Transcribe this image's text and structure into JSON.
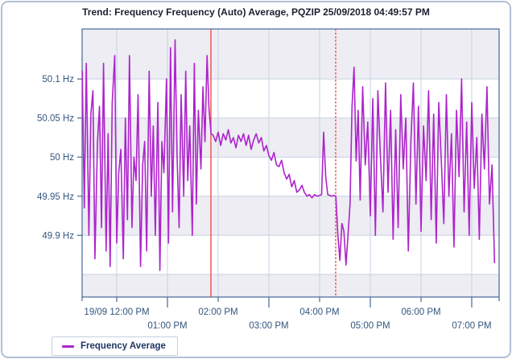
{
  "chart_data": {
    "type": "line",
    "title": "Trend: Frequency Frequency (Auto) Average, PQZIP 25/09/2018 04:49:57 PM",
    "unit": "Hz",
    "xlim_hours": [
      11.317,
      19.54
    ],
    "ylim": [
      49.821,
      50.164
    ],
    "grid": true,
    "legend_position": "bottom-left",
    "colors": {
      "band_gray": "#ededf3",
      "band_white": "#ffffff",
      "gridline": "#c6d2e1",
      "frame": "#46689a",
      "tick_label": "#33567e",
      "marker_red": "#f14b46"
    },
    "y_bands": [
      {
        "from": 50.164,
        "to": 50.1,
        "shade": "gray"
      },
      {
        "from": 50.1,
        "to": 50.05,
        "shade": "white"
      },
      {
        "from": 50.05,
        "to": 50.0,
        "shade": "gray"
      },
      {
        "from": 50.0,
        "to": 49.95,
        "shade": "white"
      },
      {
        "from": 49.95,
        "to": 49.9,
        "shade": "gray"
      },
      {
        "from": 49.9,
        "to": 49.85,
        "shade": "white"
      },
      {
        "from": 49.85,
        "to": 49.821,
        "shade": "gray"
      }
    ],
    "y_gridline_values": [
      50.1,
      50.05,
      50.0,
      49.95,
      49.9,
      49.85
    ],
    "y_ticks": [
      {
        "v": 50.1,
        "label": "50.1 Hz"
      },
      {
        "v": 50.05,
        "label": "50.05 Hz"
      },
      {
        "v": 50.0,
        "label": "50 Hz"
      },
      {
        "v": 49.95,
        "label": "49.95 Hz"
      },
      {
        "v": 49.9,
        "label": "49.9 Hz"
      }
    ],
    "x_gridline_hours": [
      12,
      13,
      14,
      15,
      16,
      17,
      18,
      19
    ],
    "x_tick_hours_short": [
      12,
      14,
      16,
      18
    ],
    "x_tick_hours_long": [
      13,
      15,
      17,
      19
    ],
    "x_labels_row1": [
      {
        "h": 12,
        "label": "19/09 12:00 PM"
      },
      {
        "h": 14,
        "label": "02:00 PM"
      },
      {
        "h": 16,
        "label": "04:00 PM"
      },
      {
        "h": 18,
        "label": "06:00 PM"
      }
    ],
    "x_labels_row2": [
      {
        "h": 13,
        "label": "01:00 PM"
      },
      {
        "h": 15,
        "label": "03:00 PM"
      },
      {
        "h": 17,
        "label": "05:00 PM"
      },
      {
        "h": 19,
        "label": "07:00 PM"
      }
    ],
    "markers": [
      {
        "x_hour": 13.857,
        "style": "solid",
        "color": "#f14b46"
      },
      {
        "x_hour": 16.317,
        "style": "dashed",
        "color": "#f14b46"
      }
    ],
    "series": [
      {
        "name": "Frequency Average",
        "color": "#ad23cb",
        "points": [
          [
            11.32,
            50.11
          ],
          [
            11.36,
            49.935
          ],
          [
            11.4,
            50.12
          ],
          [
            11.45,
            49.9
          ],
          [
            11.49,
            50.055
          ],
          [
            11.53,
            50.085
          ],
          [
            11.57,
            49.87
          ],
          [
            11.62,
            50.02
          ],
          [
            11.66,
            50.065
          ],
          [
            11.7,
            49.91
          ],
          [
            11.74,
            50.12
          ],
          [
            11.79,
            49.88
          ],
          [
            11.83,
            50.03
          ],
          [
            11.87,
            49.86
          ],
          [
            11.91,
            50.07
          ],
          [
            11.96,
            50.13
          ],
          [
            12.0,
            49.89
          ],
          [
            12.04,
            49.98
          ],
          [
            12.08,
            50.01
          ],
          [
            12.13,
            49.87
          ],
          [
            12.17,
            50.05
          ],
          [
            12.21,
            49.92
          ],
          [
            12.25,
            50.13
          ],
          [
            12.3,
            49.91
          ],
          [
            12.34,
            50.0
          ],
          [
            12.38,
            49.97
          ],
          [
            12.42,
            50.08
          ],
          [
            12.47,
            49.86
          ],
          [
            12.51,
            49.99
          ],
          [
            12.55,
            50.02
          ],
          [
            12.59,
            49.88
          ],
          [
            12.64,
            50.11
          ],
          [
            12.68,
            49.95
          ],
          [
            12.72,
            50.04
          ],
          [
            12.76,
            49.9
          ],
          [
            12.81,
            50.07
          ],
          [
            12.85,
            49.855
          ],
          [
            12.89,
            50.02
          ],
          [
            12.93,
            49.98
          ],
          [
            12.98,
            50.1
          ],
          [
            13.02,
            49.89
          ],
          [
            13.06,
            50.14
          ],
          [
            13.1,
            49.93
          ],
          [
            13.15,
            50.15
          ],
          [
            13.19,
            50.0
          ],
          [
            13.23,
            49.91
          ],
          [
            13.27,
            50.08
          ],
          [
            13.32,
            49.95
          ],
          [
            13.36,
            50.11
          ],
          [
            13.4,
            49.97
          ],
          [
            13.44,
            50.04
          ],
          [
            13.49,
            49.9
          ],
          [
            13.53,
            50.12
          ],
          [
            13.57,
            49.94
          ],
          [
            13.61,
            50.06
          ],
          [
            13.66,
            49.985
          ],
          [
            13.7,
            50.09
          ],
          [
            13.74,
            50.02
          ],
          [
            13.78,
            50.13
          ],
          [
            13.82,
            50.06
          ],
          [
            13.86,
            50.03
          ],
          [
            13.9,
            50.028
          ],
          [
            13.95,
            50.02
          ],
          [
            14.0,
            50.032
          ],
          [
            14.05,
            50.015
          ],
          [
            14.1,
            50.03
          ],
          [
            14.15,
            50.022
          ],
          [
            14.2,
            50.035
          ],
          [
            14.25,
            50.018
          ],
          [
            14.3,
            50.025
          ],
          [
            14.35,
            50.012
          ],
          [
            14.4,
            50.028
          ],
          [
            14.45,
            50.02
          ],
          [
            14.5,
            50.03
          ],
          [
            14.55,
            50.015
          ],
          [
            14.6,
            50.028
          ],
          [
            14.65,
            50.01
          ],
          [
            14.7,
            50.022
          ],
          [
            14.75,
            50.03
          ],
          [
            14.8,
            50.018
          ],
          [
            14.85,
            50.025
          ],
          [
            14.9,
            50.008
          ],
          [
            14.95,
            50.015
          ],
          [
            15.0,
            50.002
          ],
          [
            15.05,
            49.996
          ],
          [
            15.1,
            50.006
          ],
          [
            15.15,
            49.99
          ],
          [
            15.2,
            49.988
          ],
          [
            15.25,
            49.996
          ],
          [
            15.3,
            49.98
          ],
          [
            15.35,
            49.972
          ],
          [
            15.4,
            49.978
          ],
          [
            15.45,
            49.962
          ],
          [
            15.5,
            49.97
          ],
          [
            15.55,
            49.955
          ],
          [
            15.6,
            49.958
          ],
          [
            15.65,
            49.964
          ],
          [
            15.7,
            49.955
          ],
          [
            15.75,
            49.95
          ],
          [
            15.8,
            49.952
          ],
          [
            15.85,
            49.948
          ],
          [
            15.9,
            49.952
          ],
          [
            15.95,
            49.95
          ],
          [
            16.0,
            49.951
          ],
          [
            16.04,
            49.952
          ],
          [
            16.08,
            50.032
          ],
          [
            16.12,
            49.975
          ],
          [
            16.16,
            49.952
          ],
          [
            16.2,
            49.951
          ],
          [
            16.24,
            49.95
          ],
          [
            16.28,
            49.951
          ],
          [
            16.32,
            49.95
          ],
          [
            16.36,
            49.9
          ],
          [
            16.4,
            49.868
          ],
          [
            16.44,
            49.915
          ],
          [
            16.48,
            49.905
          ],
          [
            16.52,
            49.862
          ],
          [
            16.56,
            49.9
          ],
          [
            16.6,
            49.94
          ],
          [
            16.64,
            50.065
          ],
          [
            16.68,
            50.115
          ],
          [
            16.72,
            49.995
          ],
          [
            16.76,
            50.06
          ],
          [
            16.8,
            49.945
          ],
          [
            16.85,
            50.09
          ],
          [
            16.9,
            49.99
          ],
          [
            16.95,
            50.045
          ],
          [
            17.0,
            49.925
          ],
          [
            17.05,
            50.075
          ],
          [
            17.1,
            49.9
          ],
          [
            17.15,
            50.085
          ],
          [
            17.2,
            50.0
          ],
          [
            17.25,
            49.93
          ],
          [
            17.3,
            50.095
          ],
          [
            17.35,
            49.955
          ],
          [
            17.4,
            50.06
          ],
          [
            17.45,
            49.895
          ],
          [
            17.5,
            50.035
          ],
          [
            17.55,
            49.91
          ],
          [
            17.6,
            50.08
          ],
          [
            17.65,
            49.985
          ],
          [
            17.7,
            50.05
          ],
          [
            17.75,
            49.88
          ],
          [
            17.8,
            50.02
          ],
          [
            17.85,
            50.095
          ],
          [
            17.9,
            49.94
          ],
          [
            17.95,
            50.065
          ],
          [
            18.0,
            49.905
          ],
          [
            18.05,
            50.04
          ],
          [
            18.1,
            49.97
          ],
          [
            18.15,
            50.085
          ],
          [
            18.2,
            49.92
          ],
          [
            18.25,
            50.055
          ],
          [
            18.3,
            49.89
          ],
          [
            18.35,
            50.07
          ],
          [
            18.4,
            49.995
          ],
          [
            18.45,
            49.915
          ],
          [
            18.5,
            50.08
          ],
          [
            18.55,
            49.95
          ],
          [
            18.6,
            50.03
          ],
          [
            18.65,
            49.885
          ],
          [
            18.7,
            50.06
          ],
          [
            18.75,
            49.975
          ],
          [
            18.8,
            50.1
          ],
          [
            18.85,
            49.93
          ],
          [
            18.9,
            50.045
          ],
          [
            18.95,
            49.9
          ],
          [
            19.0,
            50.07
          ],
          [
            19.05,
            49.96
          ],
          [
            19.1,
            50.025
          ],
          [
            19.15,
            49.895
          ],
          [
            19.2,
            50.055
          ],
          [
            19.25,
            49.985
          ],
          [
            19.3,
            50.09
          ],
          [
            19.35,
            49.94
          ],
          [
            19.4,
            49.99
          ],
          [
            19.45,
            49.865
          ]
        ]
      }
    ]
  }
}
